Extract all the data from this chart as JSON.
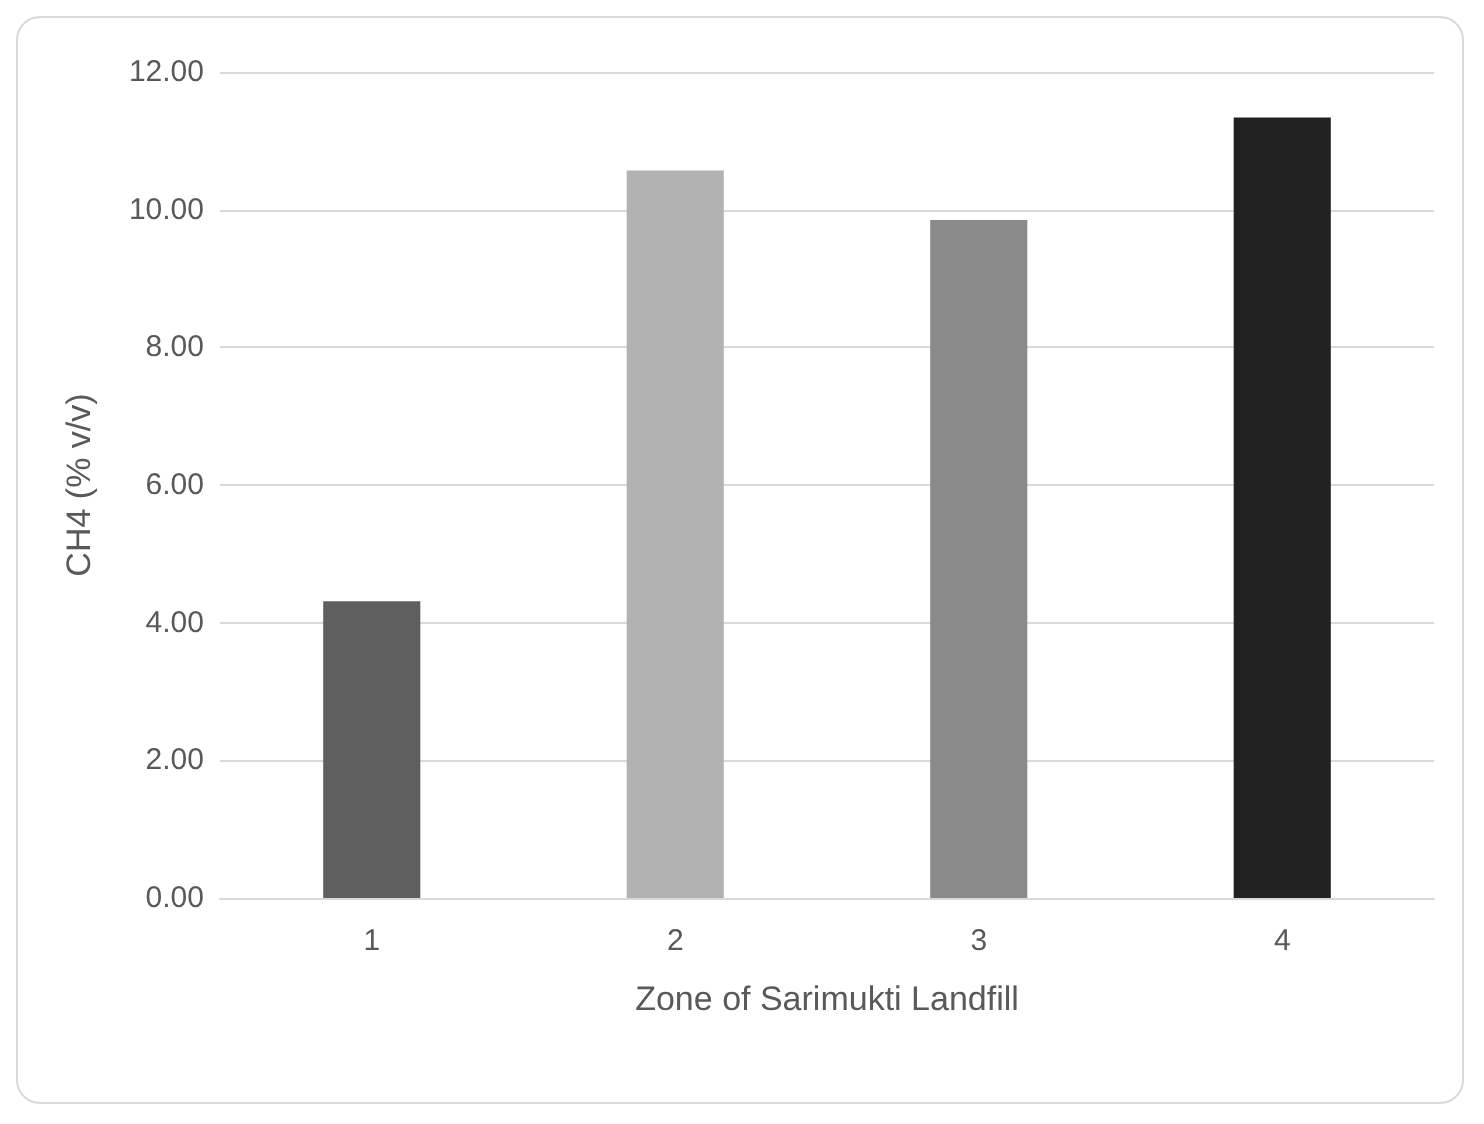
{
  "chart_data": {
    "type": "bar",
    "xlabel": "Zone of Sarimukti Landfill",
    "ylabel": "CH4 (% v/v)",
    "categories": [
      "1",
      "2",
      "3",
      "4"
    ],
    "values": [
      4.31,
      10.57,
      9.85,
      11.34
    ],
    "colors": [
      "#5f5f5f",
      "#b2b2b2",
      "#8a8a8a",
      "#222222"
    ],
    "ylim": [
      0,
      12
    ],
    "yticks": [
      {
        "value": 0,
        "label": "0.00"
      },
      {
        "value": 2,
        "label": "2.00"
      },
      {
        "value": 4,
        "label": "4.00"
      },
      {
        "value": 6,
        "label": "6.00"
      },
      {
        "value": 8,
        "label": "8.00"
      },
      {
        "value": 10,
        "label": "10.00"
      },
      {
        "value": 12,
        "label": "12.00"
      }
    ],
    "grid": "y"
  }
}
